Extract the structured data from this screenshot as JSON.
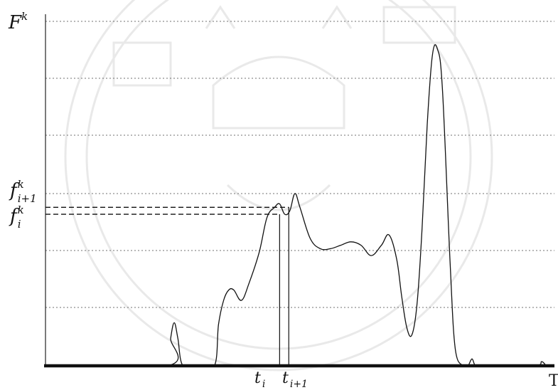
{
  "chart_data": {
    "type": "line",
    "title": "",
    "xlabel": "T",
    "ylabel": "F^k",
    "grid": "horizontal dotted",
    "xlim": [
      0,
      100
    ],
    "ylim": [
      0,
      100
    ],
    "x_tick_labels": [
      "t_i",
      "t_{i+1}"
    ],
    "y_tick_labels": [
      "f^k_{i+1}",
      "f^k_i"
    ],
    "series": [
      {
        "x": [
          0,
          24.0,
          24.6,
          25.3,
          26.0,
          27.0,
          30,
          33.2,
          34.0,
          35.0,
          36.0,
          37.0,
          38.5,
          40.0,
          42.0,
          43.5,
          45.0,
          46.0,
          47.0,
          48.0,
          49.0,
          50.0,
          52.0,
          54.0,
          56.0,
          58.0,
          60.0,
          62.0,
          64.0,
          66.0,
          67.5,
          69.0,
          70.0,
          71.0,
          72.0,
          73.0,
          74.0,
          75.0,
          76.0,
          77.0,
          78.0,
          79.5,
          80.5,
          82.0,
          83.0,
          83.8,
          84.5,
          86,
          96,
          97.5,
          98.5,
          100
        ],
        "y": [
          0,
          0,
          8.0,
          12.5,
          8.0,
          0,
          0,
          0,
          12.0,
          19.0,
          22.0,
          22.0,
          19.0,
          24.0,
          33.0,
          43.0,
          46.0,
          47.0,
          44.0,
          45.0,
          50.0,
          46.0,
          37.0,
          34.0,
          34.0,
          35.0,
          36.0,
          35.0,
          32.0,
          35.0,
          38.0,
          31.0,
          20.0,
          11.0,
          9.0,
          18.0,
          40.0,
          70.0,
          90.0,
          92.0,
          80.0,
          30.0,
          5.0,
          0,
          0,
          2.0,
          0,
          0,
          0,
          1.2,
          0,
          0
        ]
      }
    ],
    "annotations": {
      "t_i": 46.0,
      "t_i1": 47.8,
      "f_i": 44.0,
      "f_i1": 46.0
    }
  },
  "labels": {
    "y_axis_main": "F",
    "y_axis_sup": "k",
    "x_axis_main": "T",
    "f_i1_main": "f",
    "f_i1_sup": "k",
    "f_i1_sub": "i+1",
    "f_i_main": "f",
    "f_i_sup": "k",
    "f_i_sub": "i",
    "t_i_main": "t",
    "t_i_sub": "i",
    "t_i1_main": "t",
    "t_i1_sub": "i+1"
  }
}
